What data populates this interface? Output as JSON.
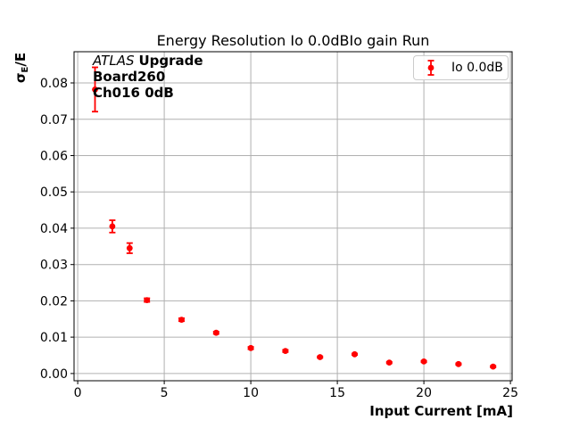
{
  "chart_data": {
    "type": "scatter",
    "title": "Energy Resolution Io 0.0dBIo gain Run",
    "xlabel": "Input Current [mA]",
    "ylabel": "σE/E",
    "grid": true,
    "legend_position": "upper right",
    "xlim": [
      -0.21,
      25.1
    ],
    "ylim": [
      -0.002,
      0.0886
    ],
    "xticks": [
      0,
      5,
      10,
      15,
      20,
      25
    ],
    "yticks": [
      0,
      0.01,
      0.02,
      0.03,
      0.04,
      0.05,
      0.06,
      0.07,
      0.08
    ],
    "series": [
      {
        "name": "Io 0.0dB",
        "marker": "circle-with-errorbar",
        "x": [
          1,
          2,
          3,
          4,
          6,
          8,
          10,
          12,
          14,
          16,
          18,
          20,
          22,
          24
        ],
        "y": [
          0.0782,
          0.0405,
          0.0345,
          0.0202,
          0.0148,
          0.0112,
          0.007,
          0.0062,
          0.0045,
          0.0053,
          0.003,
          0.0033,
          0.0026,
          0.0019
        ],
        "yerr": [
          0.0061,
          0.0017,
          0.0014,
          0.0005,
          0.0004,
          0.0003,
          0.0003,
          0.0003,
          0.0002,
          0.0002,
          0.0002,
          0.0002,
          0.0002,
          0.0002
        ]
      }
    ],
    "annotations": [
      "ATLAS Upgrade",
      "Board260",
      "Ch016 0dB"
    ]
  },
  "ylabel_parts": {
    "sigma": "σ",
    "subscript": "E",
    "rest": "/E"
  },
  "annotation": {
    "line1": {
      "italic": "ATLAS",
      "bold": "Upgrade"
    },
    "line2": "Board260",
    "line3": "Ch016 0dB"
  },
  "legend": {
    "label": "Io 0.0dB"
  },
  "colors": {
    "series": "#ff0000",
    "grid": "#b0b0b0",
    "spine": "#000000",
    "text": "#000000",
    "legend_border": "#cccccc"
  }
}
